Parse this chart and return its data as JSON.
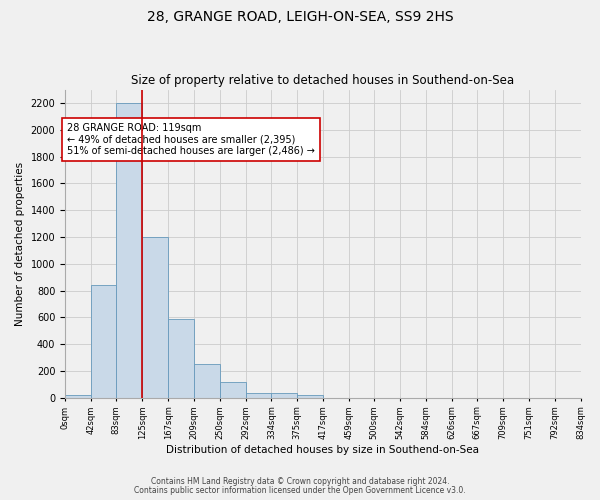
{
  "title": "28, GRANGE ROAD, LEIGH-ON-SEA, SS9 2HS",
  "subtitle": "Size of property relative to detached houses in Southend-on-Sea",
  "xlabel": "Distribution of detached houses by size in Southend-on-Sea",
  "ylabel": "Number of detached properties",
  "footer_line1": "Contains HM Land Registry data © Crown copyright and database right 2024.",
  "footer_line2": "Contains public sector information licensed under the Open Government Licence v3.0.",
  "bar_edges": [
    0,
    42,
    83,
    125,
    167,
    209,
    250,
    292,
    334,
    375,
    417,
    459,
    500,
    542,
    584,
    626,
    667,
    709,
    751,
    792,
    834
  ],
  "bar_heights": [
    20,
    840,
    2200,
    1200,
    590,
    255,
    115,
    35,
    35,
    20,
    0,
    0,
    0,
    0,
    0,
    0,
    0,
    0,
    0,
    0
  ],
  "bar_color": "#c9d9e8",
  "bar_edgecolor": "#6699bb",
  "grid_color": "#cccccc",
  "vline_x": 125,
  "vline_color": "#cc0000",
  "annotation_text": "28 GRANGE ROAD: 119sqm\n← 49% of detached houses are smaller (2,395)\n51% of semi-detached houses are larger (2,486) →",
  "annotation_box_color": "#ffffff",
  "annotation_box_edgecolor": "#cc0000",
  "ylim": [
    0,
    2300
  ],
  "yticks": [
    0,
    200,
    400,
    600,
    800,
    1000,
    1200,
    1400,
    1600,
    1800,
    2000,
    2200
  ],
  "tick_labels": [
    "0sqm",
    "42sqm",
    "83sqm",
    "125sqm",
    "167sqm",
    "209sqm",
    "250sqm",
    "292sqm",
    "334sqm",
    "375sqm",
    "417sqm",
    "459sqm",
    "500sqm",
    "542sqm",
    "584sqm",
    "626sqm",
    "667sqm",
    "709sqm",
    "751sqm",
    "792sqm",
    "834sqm"
  ],
  "background_color": "#f0f0f0",
  "plot_background": "#f0f0f0",
  "title_fontsize": 10,
  "subtitle_fontsize": 8.5
}
